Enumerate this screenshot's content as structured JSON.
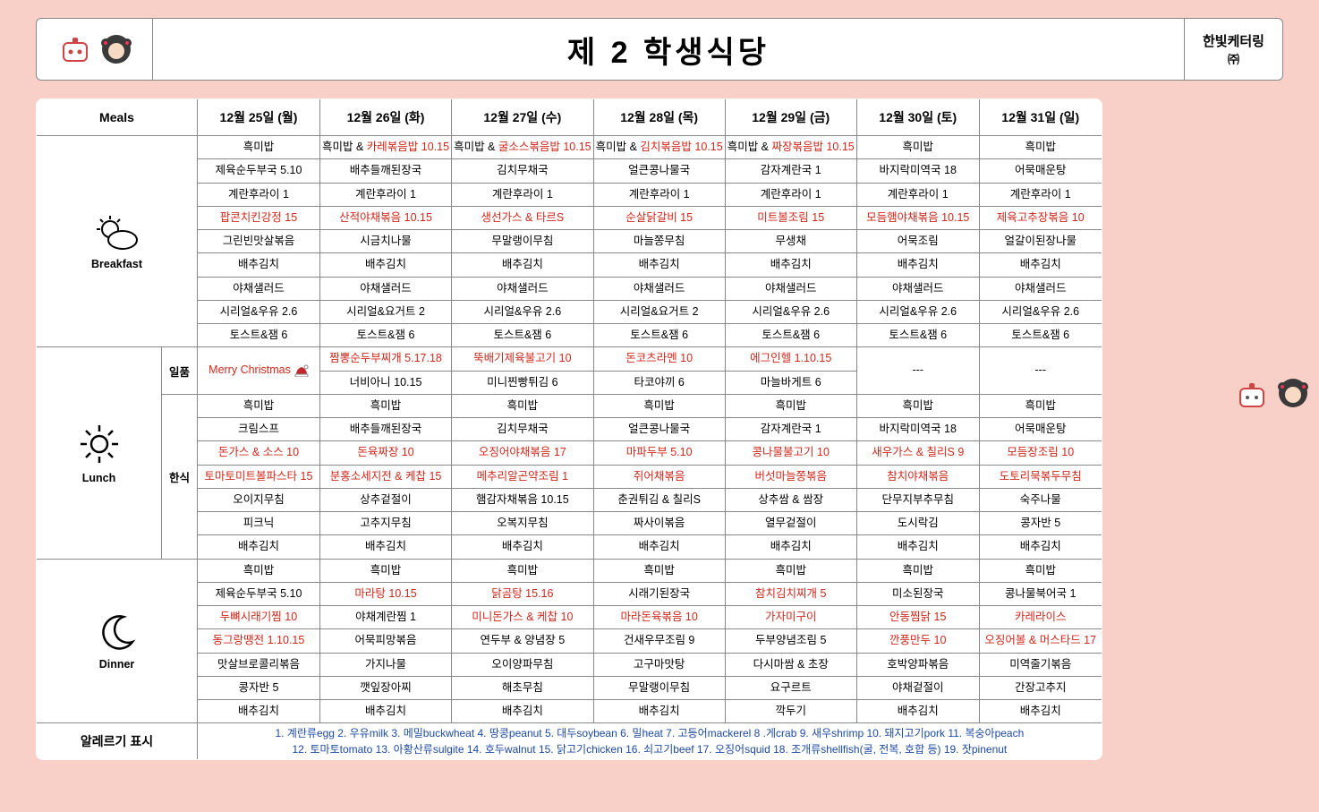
{
  "title": "제 2 학생식당",
  "brand": {
    "name": "한빛케터링",
    "sub": "㈜"
  },
  "columns": [
    "12월 25일 (월)",
    "12월 26일 (화)",
    "12월 27일 (수)",
    "12월 28일 (목)",
    "12월 29일 (금)",
    "12월 30일 (토)",
    "12월 31일 (일)"
  ],
  "meals_header": "Meals",
  "breakfast": {
    "label": "Breakfast",
    "rows": [
      [
        {
          "t": "흑미밥"
        },
        {
          "t": "흑미밥 & ",
          "t2": "카레볶음밥 10.15",
          "r": true
        },
        {
          "t": "흑미밥 & ",
          "t2": "굴소스볶음밥 10.15",
          "r": true
        },
        {
          "t": "흑미밥 & ",
          "t2": "김치볶음밥 10.15",
          "r": true
        },
        {
          "t": "흑미밥 & ",
          "t2": "짜장볶음밥 10.15",
          "r": true
        },
        {
          "t": "흑미밥"
        },
        {
          "t": "흑미밥"
        }
      ],
      [
        {
          "t": "제육순두부국 5.10"
        },
        {
          "t": "배추들깨된장국"
        },
        {
          "t": "김치무채국"
        },
        {
          "t": "얼큰콩나물국"
        },
        {
          "t": "감자계란국 1"
        },
        {
          "t": "바지락미역국 18"
        },
        {
          "t": "어묵매운탕"
        }
      ],
      [
        {
          "t": "계란후라이 1"
        },
        {
          "t": "계란후라이 1"
        },
        {
          "t": "계란후라이 1"
        },
        {
          "t": "계란후라이 1"
        },
        {
          "t": "계란후라이 1"
        },
        {
          "t": "계란후라이 1"
        },
        {
          "t": "계란후라이 1"
        }
      ],
      [
        {
          "t": "팝콘치킨강정 15",
          "r": true
        },
        {
          "t": "산적야채볶음 10.15",
          "r": true
        },
        {
          "t": "생선가스 & 타르S",
          "r": true
        },
        {
          "t": "순살닭갈비 15",
          "r": true
        },
        {
          "t": "미트볼조림 15",
          "r": true
        },
        {
          "t": "모듬햄야채볶음 10.15",
          "r": true
        },
        {
          "t": "제육고추장볶음 10",
          "r": true
        }
      ],
      [
        {
          "t": "그린빈맛살볶음"
        },
        {
          "t": "시금치나물"
        },
        {
          "t": "무말랭이무침"
        },
        {
          "t": "마늘쫑무침"
        },
        {
          "t": "무생채"
        },
        {
          "t": "어묵조림"
        },
        {
          "t": "얼갈이된장나물"
        }
      ],
      [
        {
          "t": "배추김치"
        },
        {
          "t": "배추김치"
        },
        {
          "t": "배추김치"
        },
        {
          "t": "배추김치"
        },
        {
          "t": "배추김치"
        },
        {
          "t": "배추김치"
        },
        {
          "t": "배추김치"
        }
      ],
      [
        {
          "t": "야채샐러드"
        },
        {
          "t": "야채샐러드"
        },
        {
          "t": "야채샐러드"
        },
        {
          "t": "야채샐러드"
        },
        {
          "t": "야채샐러드"
        },
        {
          "t": "야채샐러드"
        },
        {
          "t": "야채샐러드"
        }
      ],
      [
        {
          "t": "시리얼&우유 2.6"
        },
        {
          "t": "시리얼&요거트 2"
        },
        {
          "t": "시리얼&우유 2.6"
        },
        {
          "t": "시리얼&요거트 2"
        },
        {
          "t": "시리얼&우유 2.6"
        },
        {
          "t": "시리얼&우유 2.6"
        },
        {
          "t": "시리얼&우유 2.6"
        }
      ],
      [
        {
          "t": "토스트&잼 6"
        },
        {
          "t": "토스트&잼 6"
        },
        {
          "t": "토스트&잼 6"
        },
        {
          "t": "토스트&잼 6"
        },
        {
          "t": "토스트&잼 6"
        },
        {
          "t": "토스트&잼 6"
        },
        {
          "t": "토스트&잼 6"
        }
      ]
    ]
  },
  "lunch": {
    "label": "Lunch",
    "ilpum_label": "일품",
    "hansik_label": "한식",
    "ilpum_rows": [
      [
        {
          "t": "Merry Christmas",
          "r": true,
          "xmas": true
        },
        {
          "t": "짬뽕순두부찌개 5.17.18",
          "r": true
        },
        {
          "t": "뚝배기제육불고기 10",
          "r": true
        },
        {
          "t": "돈코츠라멘 10",
          "r": true
        },
        {
          "t": "에그인헬 1.10.15",
          "r": true
        },
        {
          "t": "---"
        },
        {
          "t": "---"
        }
      ],
      [
        null,
        {
          "t": "너비아니 10.15"
        },
        {
          "t": "미니찐빵튀김 6"
        },
        {
          "t": "타코야끼 6"
        },
        {
          "t": "마늘바게트 6"
        },
        null,
        null
      ]
    ],
    "hansik_rows": [
      [
        {
          "t": "흑미밥"
        },
        {
          "t": "흑미밥"
        },
        {
          "t": "흑미밥"
        },
        {
          "t": "흑미밥"
        },
        {
          "t": "흑미밥"
        },
        {
          "t": "흑미밥"
        },
        {
          "t": "흑미밥"
        }
      ],
      [
        {
          "t": "크림스프"
        },
        {
          "t": "배추들깨된장국"
        },
        {
          "t": "김치무채국"
        },
        {
          "t": "얼큰콩나물국"
        },
        {
          "t": "감자계란국 1"
        },
        {
          "t": "바지락미역국 18"
        },
        {
          "t": "어묵매운탕"
        }
      ],
      [
        {
          "t": "돈가스 & 소스 10",
          "r": true
        },
        {
          "t": "돈육짜장 10",
          "r": true
        },
        {
          "t": "오징어야채볶음 17",
          "r": true
        },
        {
          "t": "마파두부 5.10",
          "r": true
        },
        {
          "t": "콩나물불고기 10",
          "r": true
        },
        {
          "t": "새우가스 & 칠리S 9",
          "r": true
        },
        {
          "t": "모듬장조림 10",
          "r": true
        }
      ],
      [
        {
          "t": "토마토미트볼파스타 15",
          "r": true
        },
        {
          "t": "분홍소세지전 & 케찹 15",
          "r": true
        },
        {
          "t": "메추리알곤약조림 1",
          "r": true
        },
        {
          "t": "쥐어채볶음",
          "r": true
        },
        {
          "t": "버섯마늘쫑볶음",
          "r": true
        },
        {
          "t": "참치야채볶음",
          "r": true
        },
        {
          "t": "도토리묵볶두무침",
          "r": true
        }
      ],
      [
        {
          "t": "오이지무침"
        },
        {
          "t": "상추겉절이"
        },
        {
          "t": "햄감자채볶음 10.15"
        },
        {
          "t": "춘권튀김 & 칠리S"
        },
        {
          "t": "상추쌈 & 쌈장"
        },
        {
          "t": "단무지부추무침"
        },
        {
          "t": "숙주나물"
        }
      ],
      [
        {
          "t": "피크닉"
        },
        {
          "t": "고추지무침"
        },
        {
          "t": "오복지무침"
        },
        {
          "t": "짜사이볶음"
        },
        {
          "t": "열무겉절이"
        },
        {
          "t": "도시락김"
        },
        {
          "t": "콩자반 5"
        }
      ],
      [
        {
          "t": "배추김치"
        },
        {
          "t": "배추김치"
        },
        {
          "t": "배추김치"
        },
        {
          "t": "배추김치"
        },
        {
          "t": "배추김치"
        },
        {
          "t": "배추김치"
        },
        {
          "t": "배추김치"
        }
      ]
    ]
  },
  "dinner": {
    "label": "Dinner",
    "rows": [
      [
        {
          "t": "흑미밥"
        },
        {
          "t": "흑미밥"
        },
        {
          "t": "흑미밥"
        },
        {
          "t": "흑미밥"
        },
        {
          "t": "흑미밥"
        },
        {
          "t": "흑미밥"
        },
        {
          "t": "흑미밥"
        }
      ],
      [
        {
          "t": "제육순두부국 5.10"
        },
        {
          "t": "마라탕 10.15",
          "r": true
        },
        {
          "t": "닭곰탕 15.16",
          "r": true
        },
        {
          "t": "시래기된장국"
        },
        {
          "t": "참치김치찌개 5",
          "r": true
        },
        {
          "t": "미소된장국"
        },
        {
          "t": "콩나물북어국 1"
        }
      ],
      [
        {
          "t": "두뼈시래기찜 10",
          "r": true
        },
        {
          "t": "야채계란찜 1"
        },
        {
          "t": "미니돈가스 & 케찹 10",
          "r": true
        },
        {
          "t": "마라돈육볶음 10",
          "r": true
        },
        {
          "t": "가자미구이",
          "r": true
        },
        {
          "t": "안동찜닭 15",
          "r": true
        },
        {
          "t": "카레라이스",
          "r": true
        }
      ],
      [
        {
          "t": "동그랑땡전 1.10.15",
          "r": true
        },
        {
          "t": "어묵피망볶음"
        },
        {
          "t": "연두부 & 양념장 5"
        },
        {
          "t": "건새우무조림 9"
        },
        {
          "t": "두부양념조림 5"
        },
        {
          "t": "깐풍만두 10",
          "r": true
        },
        {
          "t": "오징어볼 & 머스타드 17",
          "r": true
        }
      ],
      [
        {
          "t": "맛살브로콜리볶음"
        },
        {
          "t": "가지나물"
        },
        {
          "t": "오이양파무침"
        },
        {
          "t": "고구마맛탕"
        },
        {
          "t": "다시마쌈 & 초장"
        },
        {
          "t": "호박양파볶음"
        },
        {
          "t": "미역줄기볶음"
        }
      ],
      [
        {
          "t": "콩자반 5"
        },
        {
          "t": "깻잎장아찌"
        },
        {
          "t": "해초무침"
        },
        {
          "t": "무말랭이무침"
        },
        {
          "t": "요구르트"
        },
        {
          "t": "야채겉절이"
        },
        {
          "t": "간장고추지"
        }
      ],
      [
        {
          "t": "배추김치"
        },
        {
          "t": "배추김치"
        },
        {
          "t": "배추김치"
        },
        {
          "t": "배추김치"
        },
        {
          "t": "깍두기"
        },
        {
          "t": "배추김치"
        },
        {
          "t": "배추김치"
        }
      ]
    ]
  },
  "allergen": {
    "label": "알레르기 표시",
    "line1": "1. 계란류egg 2. 우유milk 3. 메밀buckwheat 4. 땅콩peanut 5. 대두soybean 6. 밀heat 7. 고등어mackerel 8 .게crab 9. 새우shrimp 10. 돼지고기pork 11. 복숭아peach",
    "line2": "12. 토마토tomato 13. 아황산류sulgite 14. 호두walnut 15. 닭고기chicken 16. 쇠고기beef 17. 오징어squid 18. 조개류shellfish(굴, 전복, 호합 등) 19. 잣pinenut"
  },
  "colors": {
    "highlight": "#d0281c",
    "background": "#f8d0c8"
  }
}
